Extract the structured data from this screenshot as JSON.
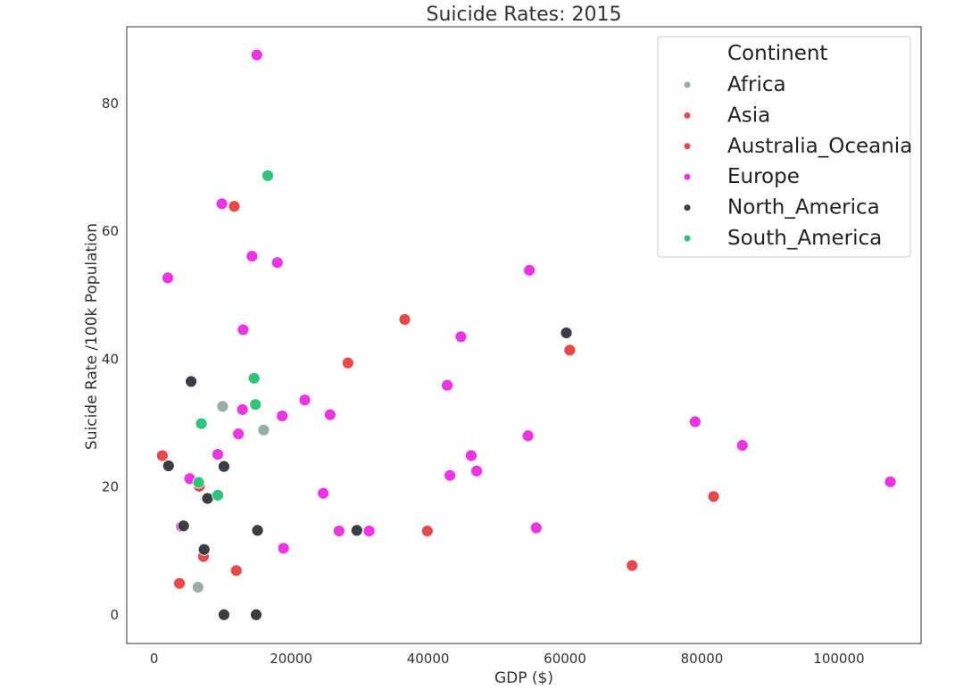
{
  "chart_data": {
    "type": "scatter",
    "title": "Suicide Rates: 2015",
    "xlabel": "GDP ($)",
    "ylabel": "Suicide Rate /100k Population",
    "xlim": [
      -4000,
      112000
    ],
    "ylim": [
      -4.5,
      92
    ],
    "x_ticks": [
      0,
      20000,
      40000,
      60000,
      80000,
      100000
    ],
    "y_ticks": [
      0,
      20,
      40,
      60,
      80
    ],
    "grid": false,
    "legend": {
      "title": "Continent",
      "placement": "top-right"
    },
    "series": [
      {
        "name": "Africa",
        "color": "#95b0a3",
        "points": [
          [
            10000,
            32.6
          ],
          [
            16000,
            28.9
          ],
          [
            6400,
            4.3
          ]
        ]
      },
      {
        "name": "Asia",
        "color": "#e84848",
        "points": [
          [
            1200,
            24.9
          ],
          [
            11700,
            63.9
          ],
          [
            6600,
            20.1
          ],
          [
            3700,
            4.9
          ],
          [
            7200,
            9.1
          ],
          [
            12000,
            6.9
          ],
          [
            28300,
            39.4
          ],
          [
            36600,
            46.2
          ],
          [
            39900,
            13.1
          ],
          [
            60700,
            41.4
          ],
          [
            69800,
            7.7
          ],
          [
            81700,
            18.5
          ]
        ]
      },
      {
        "name": "Australia_Oceania",
        "color": "#e84848",
        "points": []
      },
      {
        "name": "Europe",
        "color": "#ee33e6",
        "points": [
          [
            15000,
            87.6
          ],
          [
            9900,
            64.3
          ],
          [
            14300,
            56.1
          ],
          [
            18000,
            55.1
          ],
          [
            2000,
            52.7
          ],
          [
            13000,
            44.6
          ],
          [
            12900,
            32.1
          ],
          [
            12300,
            28.3
          ],
          [
            9300,
            25.1
          ],
          [
            5200,
            21.3
          ],
          [
            4000,
            13.8
          ],
          [
            18700,
            31.1
          ],
          [
            22000,
            33.6
          ],
          [
            25700,
            31.3
          ],
          [
            24700,
            19.0
          ],
          [
            27000,
            13.1
          ],
          [
            31400,
            13.1
          ],
          [
            18900,
            10.4
          ],
          [
            42800,
            35.9
          ],
          [
            44800,
            43.5
          ],
          [
            43200,
            21.8
          ],
          [
            46300,
            24.9
          ],
          [
            47100,
            22.5
          ],
          [
            54800,
            53.9
          ],
          [
            54600,
            28.0
          ],
          [
            55800,
            13.6
          ],
          [
            79000,
            30.2
          ],
          [
            85900,
            26.5
          ],
          [
            107500,
            20.8
          ]
        ]
      },
      {
        "name": "North_America",
        "color": "#3a3d45",
        "points": [
          [
            60200,
            44.1
          ],
          [
            5400,
            36.5
          ],
          [
            2100,
            23.3
          ],
          [
            10200,
            23.2
          ],
          [
            7800,
            18.2
          ],
          [
            4300,
            13.9
          ],
          [
            7300,
            10.2
          ],
          [
            15100,
            13.2
          ],
          [
            29600,
            13.2
          ],
          [
            10200,
            0.0
          ],
          [
            14900,
            0.0
          ]
        ]
      },
      {
        "name": "South_America",
        "color": "#2ec47a",
        "points": [
          [
            16600,
            68.7
          ],
          [
            14600,
            37.0
          ],
          [
            14800,
            32.9
          ],
          [
            6900,
            29.9
          ],
          [
            6500,
            20.7
          ],
          [
            9300,
            18.7
          ]
        ]
      }
    ]
  }
}
